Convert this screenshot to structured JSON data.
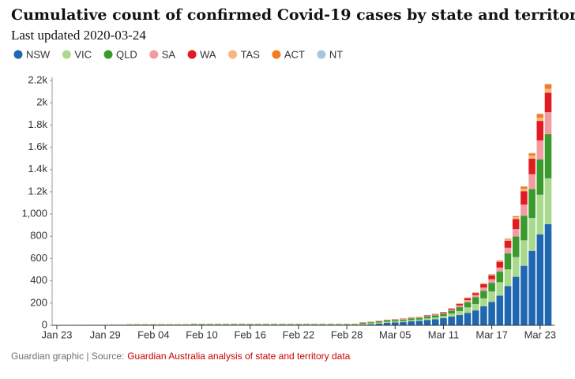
{
  "chart_data": {
    "type": "stacked_bar",
    "title": "Cumulative count of confirmed Covid-19 cases by state and territory",
    "subtitle": "Last updated 2020-03-24",
    "credit": "Guardian graphic | Source:",
    "source": "Guardian Australia analysis of state and territory data",
    "categories": [
      "Jan 23",
      null,
      null,
      null,
      null,
      null,
      "Jan 29",
      null,
      null,
      null,
      null,
      null,
      "Feb 04",
      null,
      null,
      null,
      null,
      null,
      "Feb 10",
      null,
      null,
      null,
      null,
      null,
      "Feb 16",
      null,
      null,
      null,
      null,
      null,
      "Feb 22",
      null,
      null,
      null,
      null,
      null,
      "Feb 28",
      null,
      null,
      null,
      null,
      null,
      "Mar 05",
      null,
      null,
      null,
      null,
      null,
      "Mar 11",
      null,
      null,
      null,
      null,
      null,
      "Mar 17",
      null,
      null,
      null,
      null,
      null,
      "Mar 23",
      null
    ],
    "ylim": [
      0,
      2200
    ],
    "yticks": [
      0,
      200,
      400,
      600,
      800,
      {
        "value": 1000,
        "label": "1,000"
      },
      {
        "value": 1200,
        "label": "1.2k"
      },
      {
        "value": 1400,
        "label": "1.4k"
      },
      {
        "value": 1600,
        "label": "1.6k"
      },
      {
        "value": 1800,
        "label": "1.8k"
      },
      {
        "value": 2000,
        "label": "2k"
      },
      {
        "value": 2200,
        "label": "2.2k"
      }
    ],
    "series": [
      {
        "name": "NSW",
        "color": "#2067b1",
        "values": [
          0,
          0,
          3,
          3,
          4,
          4,
          4,
          4,
          4,
          4,
          4,
          4,
          4,
          4,
          4,
          4,
          4,
          4,
          4,
          4,
          4,
          4,
          4,
          4,
          4,
          4,
          4,
          4,
          4,
          4,
          4,
          4,
          4,
          4,
          4,
          4,
          4,
          4,
          6,
          9,
          15,
          22,
          25,
          28,
          36,
          40,
          48,
          55,
          65,
          78,
          92,
          112,
          134,
          171,
          210,
          267,
          353,
          436,
          535,
          669,
          818,
          910
        ]
      },
      {
        "name": "VIC",
        "color": "#a8d98c",
        "values": [
          0,
          0,
          1,
          1,
          1,
          1,
          1,
          4,
          4,
          4,
          4,
          4,
          4,
          4,
          4,
          4,
          4,
          4,
          4,
          4,
          4,
          4,
          4,
          4,
          4,
          4,
          4,
          4,
          4,
          4,
          4,
          4,
          4,
          4,
          4,
          4,
          4,
          4,
          7,
          9,
          10,
          10,
          10,
          11,
          11,
          11,
          15,
          15,
          18,
          27,
          36,
          49,
          57,
          71,
          94,
          121,
          150,
          178,
          229,
          296,
          355,
          411
        ]
      },
      {
        "name": "QLD",
        "color": "#3a9a2e",
        "values": [
          0,
          0,
          0,
          0,
          0,
          0,
          0,
          0,
          0,
          2,
          2,
          2,
          2,
          2,
          2,
          2,
          2,
          5,
          5,
          5,
          5,
          5,
          5,
          5,
          5,
          5,
          5,
          5,
          5,
          5,
          5,
          5,
          5,
          5,
          5,
          5,
          5,
          5,
          9,
          9,
          11,
          13,
          13,
          13,
          15,
          15,
          18,
          20,
          20,
          27,
          35,
          46,
          61,
          68,
          78,
          94,
          144,
          184,
          221,
          259,
          319,
          397
        ]
      },
      {
        "name": "SA",
        "color": "#f29ca1",
        "values": [
          0,
          0,
          0,
          0,
          0,
          0,
          0,
          0,
          0,
          0,
          2,
          2,
          2,
          2,
          2,
          2,
          2,
          2,
          2,
          2,
          2,
          2,
          2,
          2,
          2,
          2,
          2,
          2,
          2,
          2,
          2,
          2,
          2,
          2,
          2,
          2,
          2,
          2,
          3,
          3,
          3,
          3,
          3,
          5,
          7,
          7,
          7,
          7,
          7,
          9,
          16,
          20,
          20,
          29,
          32,
          37,
          50,
          67,
          100,
          134,
          170,
          197
        ]
      },
      {
        "name": "WA",
        "color": "#e01b22",
        "values": [
          0,
          0,
          0,
          0,
          0,
          0,
          0,
          0,
          0,
          0,
          0,
          0,
          0,
          0,
          0,
          0,
          0,
          0,
          0,
          0,
          0,
          0,
          0,
          0,
          0,
          0,
          0,
          0,
          0,
          0,
          0,
          0,
          0,
          0,
          0,
          0,
          0,
          0,
          2,
          2,
          2,
          2,
          3,
          3,
          3,
          3,
          4,
          5,
          8,
          9,
          14,
          17,
          18,
          31,
          35,
          52,
          64,
          90,
          120,
          140,
          175,
          175
        ]
      },
      {
        "name": "TAS",
        "color": "#f6b87b",
        "values": [
          0,
          0,
          0,
          0,
          0,
          0,
          0,
          0,
          0,
          0,
          0,
          0,
          0,
          0,
          0,
          0,
          0,
          0,
          0,
          0,
          0,
          0,
          0,
          0,
          0,
          0,
          0,
          0,
          0,
          0,
          0,
          0,
          0,
          0,
          0,
          0,
          0,
          0,
          0,
          1,
          1,
          1,
          1,
          1,
          1,
          1,
          1,
          1,
          1,
          3,
          5,
          6,
          6,
          7,
          10,
          10,
          11,
          16,
          22,
          28,
          29,
          36
        ]
      },
      {
        "name": "ACT",
        "color": "#f47b20",
        "values": [
          0,
          0,
          0,
          0,
          0,
          0,
          0,
          0,
          0,
          0,
          0,
          0,
          0,
          0,
          0,
          0,
          0,
          0,
          0,
          0,
          0,
          0,
          0,
          0,
          0,
          0,
          0,
          0,
          0,
          0,
          0,
          0,
          0,
          0,
          0,
          0,
          0,
          0,
          0,
          0,
          0,
          0,
          0,
          0,
          0,
          0,
          0,
          0,
          0,
          1,
          1,
          1,
          1,
          2,
          2,
          3,
          6,
          9,
          19,
          19,
          32,
          39
        ]
      },
      {
        "name": "NT",
        "color": "#a7c5df",
        "values": [
          0,
          0,
          0,
          0,
          0,
          0,
          0,
          0,
          0,
          0,
          0,
          0,
          0,
          0,
          0,
          0,
          0,
          0,
          0,
          0,
          0,
          0,
          0,
          0,
          0,
          0,
          0,
          0,
          0,
          0,
          0,
          0,
          0,
          0,
          0,
          0,
          0,
          0,
          0,
          0,
          0,
          0,
          0,
          0,
          0,
          0,
          0,
          0,
          0,
          0,
          0,
          0,
          0,
          0,
          1,
          1,
          1,
          3,
          3,
          5,
          5,
          5
        ]
      }
    ]
  }
}
